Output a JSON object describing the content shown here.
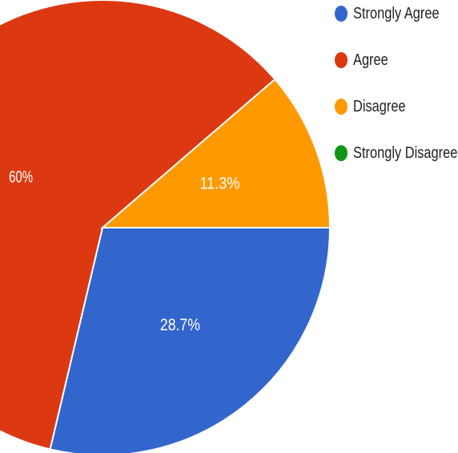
{
  "chart_data": {
    "type": "pie",
    "title": "",
    "slices": [
      {
        "label": "Strongly Agree",
        "value": 28.7,
        "value_label": "28.7%",
        "color": "#3366cc"
      },
      {
        "label": "Agree",
        "value": 60,
        "value_label": "60%",
        "color": "#dc3912"
      },
      {
        "label": "Disagree",
        "value": 11.3,
        "value_label": "11.3%",
        "color": "#ff9900"
      },
      {
        "label": "Strongly Disagree",
        "value": 0,
        "value_label": "",
        "color": "#109618"
      }
    ],
    "legend_position": "top-right",
    "start_angle_deg": 90,
    "direction": "counterclockwise-from-right"
  }
}
